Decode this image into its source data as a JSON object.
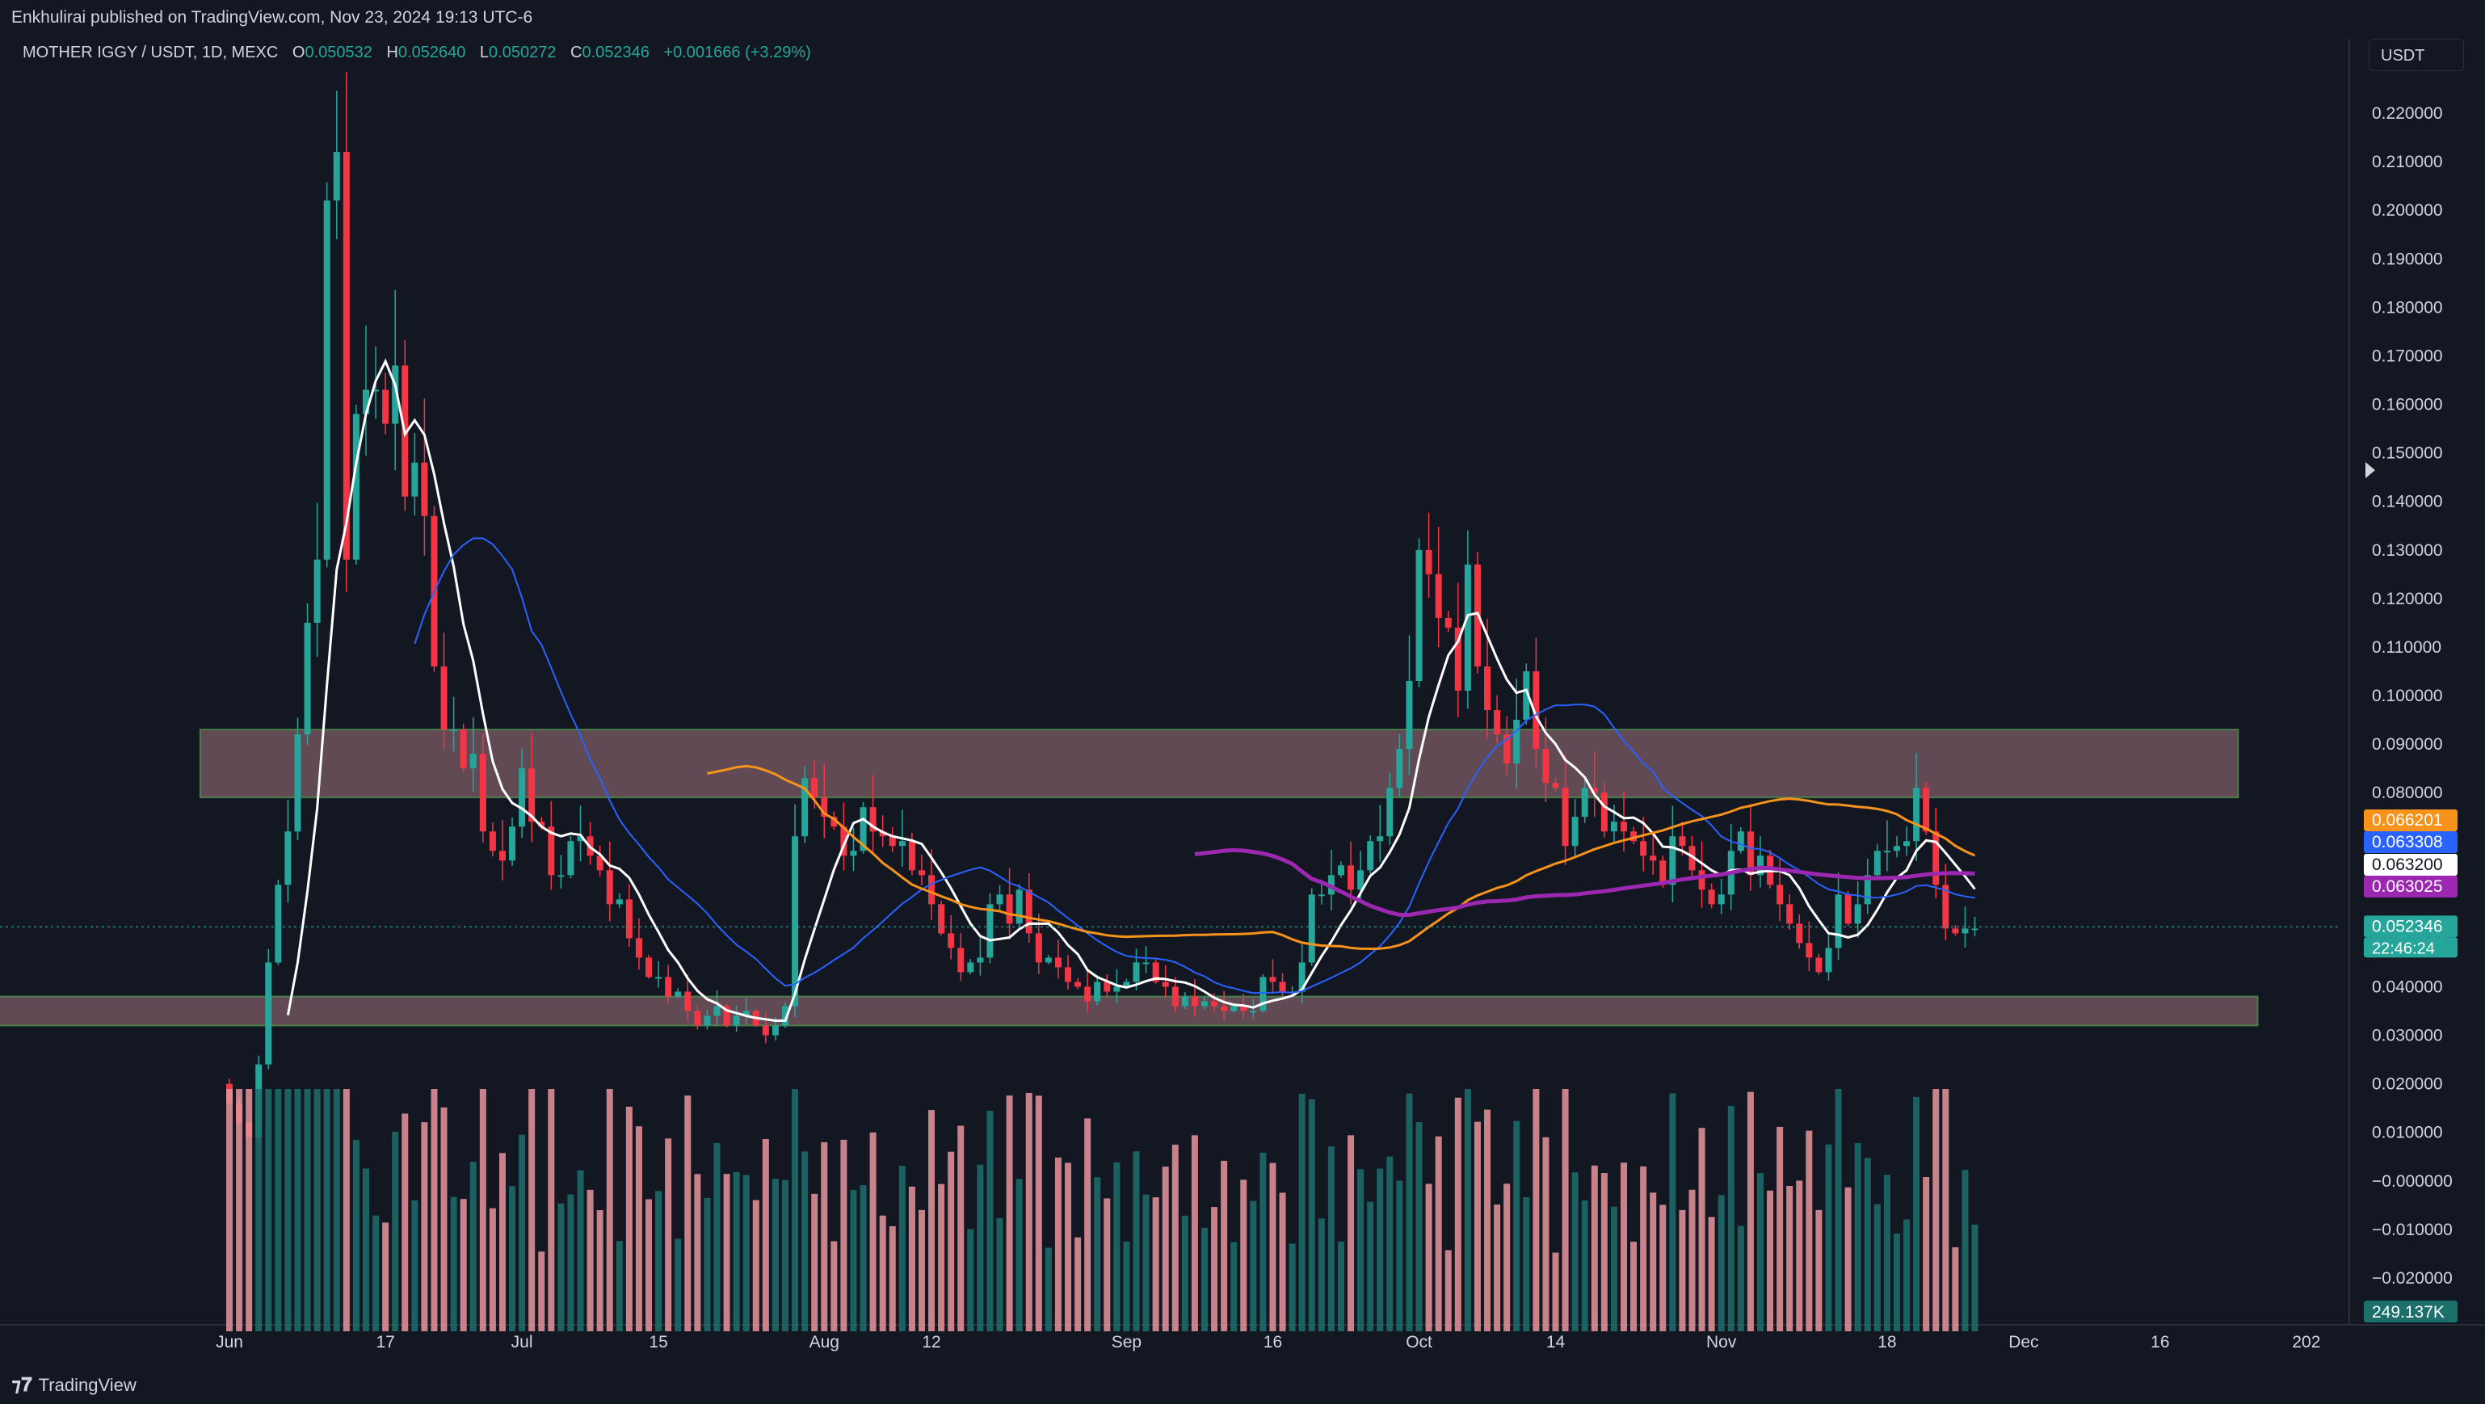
{
  "header": {
    "publisher": "Enkhulirai published on TradingView.com, Nov 23, 2024 19:13 UTC-6"
  },
  "legend": {
    "symbol": "MOTHER IGGY / USDT, 1D, MEXC",
    "open_label": "O",
    "open": "0.050532",
    "high_label": "H",
    "high": "0.052640",
    "low_label": "L",
    "low": "0.050272",
    "close_label": "C",
    "close": "0.052346",
    "change": "+0.001666 (+3.29%)"
  },
  "currency_button": "USDT",
  "footer": {
    "brand": "TradingView"
  },
  "colors": {
    "background": "#131722",
    "up": "#26a69a",
    "down": "#f23645",
    "ma_white": "#ffffff",
    "ma_blue": "#2962ff",
    "ma_orange": "#f7931a",
    "ma_purple": "#9c27b0",
    "zone_fill": "#7e5c67",
    "zone_border": "#4caf50"
  },
  "chart_data": {
    "type": "candlestick",
    "title": "",
    "y_axis": {
      "range": [
        -0.025,
        0.228
      ],
      "tick_labels": [
        "0.220000",
        "0.210000",
        "0.200000",
        "0.190000",
        "0.180000",
        "0.170000",
        "0.160000",
        "0.150000",
        "0.140000",
        "0.130000",
        "0.120000",
        "0.110000",
        "0.100000",
        "0.090000",
        "0.080000",
        "0.070000",
        "0.060000",
        "0.050000",
        "0.040000",
        "0.030000",
        "0.020000",
        "0.010000",
        "−0.000000",
        "−0.010000",
        "−0.020000"
      ],
      "tick_values": [
        0.22,
        0.21,
        0.2,
        0.19,
        0.18,
        0.17,
        0.16,
        0.15,
        0.14,
        0.13,
        0.12,
        0.11,
        0.1,
        0.09,
        0.08,
        0.07,
        0.06,
        0.05,
        0.04,
        0.03,
        0.02,
        0.01,
        0.0,
        -0.01,
        -0.02
      ]
    },
    "x_axis": {
      "tick_labels": [
        "Jun",
        "17",
        "Jul",
        "15",
        "Aug",
        "12",
        "Sep",
        "16",
        "Oct",
        "14",
        "Nov",
        "18",
        "Dec",
        "16",
        "202"
      ],
      "tick_days": [
        0,
        16,
        30,
        44,
        61,
        72,
        92,
        107,
        122,
        136,
        153,
        170,
        184,
        198,
        213
      ]
    },
    "price_labels": [
      {
        "name": "ma-orange",
        "text": "0.066201",
        "value": 0.066201,
        "color": "#f7931a"
      },
      {
        "name": "ma-blue",
        "text": "0.063308",
        "value": 0.063308,
        "color": "#2962ff"
      },
      {
        "name": "ma-white",
        "text": "0.063200",
        "value": 0.0632,
        "color": "#ffffff"
      },
      {
        "name": "ma-purple",
        "text": "0.063025",
        "value": 0.063025,
        "color": "#9c27b0"
      },
      {
        "name": "last-price",
        "text": "0.052346",
        "value": 0.052346,
        "color": "#26a69a"
      }
    ],
    "countdown": "22:46:24",
    "volume_label": "249.137K",
    "zones": [
      {
        "name": "resistance-zone",
        "from_day": -3,
        "to_day": 206,
        "low": 0.079,
        "high": 0.093
      },
      {
        "name": "support-zone",
        "from_day": -24,
        "to_day": 208,
        "low": 0.032,
        "high": 0.038
      }
    ],
    "closes": [
      0.016,
      0.012,
      0.009,
      0.024,
      0.045,
      0.061,
      0.072,
      0.092,
      0.115,
      0.128,
      0.202,
      0.212,
      0.128,
      0.158,
      0.163,
      0.163,
      0.156,
      0.168,
      0.141,
      0.148,
      0.137,
      0.106,
      0.093,
      0.093,
      0.085,
      0.088,
      0.072,
      0.068,
      0.066,
      0.073,
      0.085,
      0.074,
      0.073,
      0.063,
      0.063,
      0.07,
      0.071,
      0.067,
      0.064,
      0.057,
      0.058,
      0.05,
      0.046,
      0.042,
      0.042,
      0.038,
      0.039,
      0.035,
      0.032,
      0.034,
      0.036,
      0.032,
      0.034,
      0.035,
      0.032,
      0.03,
      0.032,
      0.036,
      0.071,
      0.083,
      0.079,
      0.075,
      0.073,
      0.067,
      0.068,
      0.077,
      0.072,
      0.071,
      0.069,
      0.07,
      0.064,
      0.063,
      0.057,
      0.051,
      0.048,
      0.043,
      0.045,
      0.046,
      0.057,
      0.059,
      0.053,
      0.06,
      0.051,
      0.045,
      0.046,
      0.044,
      0.041,
      0.04,
      0.037,
      0.041,
      0.039,
      0.04,
      0.041,
      0.045,
      0.045,
      0.041,
      0.04,
      0.036,
      0.038,
      0.036,
      0.037,
      0.036,
      0.035,
      0.036,
      0.035,
      0.035,
      0.042,
      0.041,
      0.039,
      0.039,
      0.045,
      0.059,
      0.059,
      0.063,
      0.065,
      0.06,
      0.064,
      0.07,
      0.071,
      0.081,
      0.089,
      0.103,
      0.13,
      0.125,
      0.116,
      0.114,
      0.101,
      0.127,
      0.106,
      0.097,
      0.092,
      0.086,
      0.095,
      0.105,
      0.089,
      0.082,
      0.081,
      0.069,
      0.075,
      0.081,
      0.08,
      0.072,
      0.074,
      0.072,
      0.07,
      0.067,
      0.066,
      0.061,
      0.071,
      0.069,
      0.064,
      0.06,
      0.057,
      0.059,
      0.068,
      0.072,
      0.063,
      0.067,
      0.061,
      0.057,
      0.053,
      0.049,
      0.046,
      0.043,
      0.048,
      0.059,
      0.053,
      0.057,
      0.063,
      0.068,
      0.068,
      0.069,
      0.07,
      0.081,
      0.072,
      0.061,
      0.052,
      0.051,
      0.052,
      0.052
    ]
  }
}
